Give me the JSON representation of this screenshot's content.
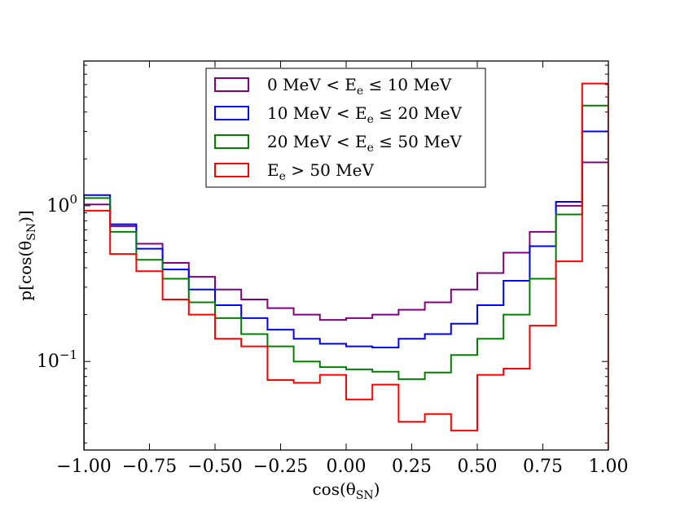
{
  "chart_data": {
    "type": "step-histogram",
    "title": "",
    "xlabel": "cos(θ",
    "xlabel_sub": "SN",
    "xlabel_close": ")",
    "ylabel": "p[cos(θ",
    "ylabel_sub": "SN",
    "ylabel_close": ")]",
    "xlim": [
      -1.0,
      1.0
    ],
    "ylim": [
      0.027,
      8.5
    ],
    "yscale": "log",
    "x_ticks": [
      "−1.00",
      "−0.75",
      "−0.50",
      "−0.25",
      "0.00",
      "0.25",
      "0.50",
      "0.75",
      "1.00"
    ],
    "x_tick_values": [
      -1.0,
      -0.75,
      -0.5,
      -0.25,
      0.0,
      0.25,
      0.5,
      0.75,
      1.0
    ],
    "y_ticks": [
      {
        "value": 1.0,
        "base": "10",
        "exp": "0"
      },
      {
        "value": 0.1,
        "base": "10",
        "exp": "−1"
      }
    ],
    "bin_edges": [
      -1.0,
      -0.9,
      -0.8,
      -0.7,
      -0.6,
      -0.5,
      -0.4,
      -0.3,
      -0.2,
      -0.1,
      0.0,
      0.1,
      0.2,
      0.3,
      0.4,
      0.5,
      0.6,
      0.7,
      0.8,
      0.9,
      1.0
    ],
    "legend_position": "top-center",
    "series": [
      {
        "name": "0 MeV < E_e ≤ 10 MeV",
        "label_pre": "0 MeV < E",
        "label_sub": "e",
        "label_post": " ≤ 10 MeV",
        "color": "#800080",
        "values": [
          1.02,
          0.74,
          0.57,
          0.43,
          0.35,
          0.29,
          0.25,
          0.22,
          0.2,
          0.185,
          0.19,
          0.2,
          0.215,
          0.24,
          0.29,
          0.37,
          0.5,
          0.68,
          1.0,
          1.9
        ]
      },
      {
        "name": "10 MeV < E_e ≤ 20 MeV",
        "label_pre": "10 MeV < E",
        "label_sub": "e",
        "label_post": " ≤ 20 MeV",
        "color": "#0000ff",
        "values": [
          1.17,
          0.76,
          0.53,
          0.39,
          0.29,
          0.23,
          0.19,
          0.16,
          0.14,
          0.13,
          0.125,
          0.123,
          0.14,
          0.15,
          0.175,
          0.23,
          0.33,
          0.55,
          1.06,
          3.0
        ]
      },
      {
        "name": "20 MeV < E_e ≤ 50 MeV",
        "label_pre": "20 MeV < E",
        "label_sub": "e",
        "label_post": " ≤ 50 MeV",
        "color": "#008000",
        "values": [
          1.12,
          0.68,
          0.45,
          0.34,
          0.24,
          0.19,
          0.15,
          0.125,
          0.1,
          0.092,
          0.089,
          0.086,
          0.077,
          0.085,
          0.11,
          0.14,
          0.2,
          0.34,
          0.88,
          4.4
        ]
      },
      {
        "name": "E_e > 50 MeV",
        "label_pre": "E",
        "label_sub": "e",
        "label_post": " > 50 MeV",
        "color": "#ff0000",
        "values": [
          0.93,
          0.49,
          0.38,
          0.25,
          0.2,
          0.14,
          0.125,
          0.076,
          0.073,
          0.082,
          0.057,
          0.071,
          0.041,
          0.046,
          0.036,
          0.082,
          0.09,
          0.17,
          0.44,
          6.1
        ]
      }
    ]
  }
}
